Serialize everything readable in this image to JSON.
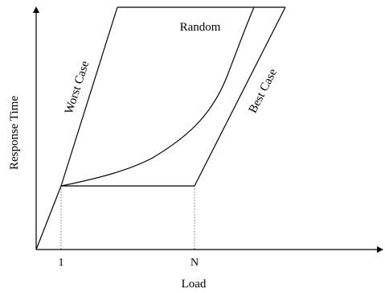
{
  "diagram": {
    "axes": {
      "x_label": "Load",
      "y_label": "Response Time"
    },
    "ticks": {
      "one": "1",
      "n": "N"
    },
    "curves": {
      "worst": "Worst Case",
      "best": "Best Case",
      "random": "Random"
    },
    "colors": {
      "ink": "#000000",
      "guide": "#555555"
    }
  }
}
